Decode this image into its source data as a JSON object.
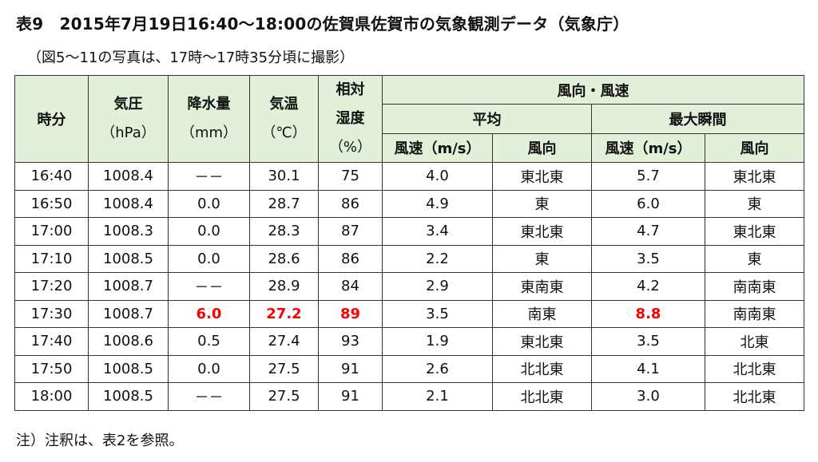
{
  "title": "表9　2015年7月19日16:40〜18:00の佐賀県佐賀市の気象観測データ（気象庁）",
  "subtitle": "（図5〜11の写真は、17時〜17時35分頃に撮影）",
  "headers": {
    "time": "時分",
    "pressure": "気圧",
    "pressure_unit": "（hPa）",
    "precip": "降水量",
    "precip_unit": "（mm）",
    "temp": "気温",
    "temp_unit": "（℃）",
    "humidity_1": "相対",
    "humidity_2": "湿度",
    "humidity_unit": "（%）",
    "wind": "風向・風速",
    "avg": "平均",
    "max": "最大瞬間",
    "speed": "風速（m/s）",
    "direction": "風向"
  },
  "rows": [
    {
      "time": "16:40",
      "pressure": "1008.4",
      "precip": "－－",
      "temp": "30.1",
      "humidity": "75",
      "avg_speed": "4.0",
      "avg_dir": "東北東",
      "max_speed": "5.7",
      "max_dir": "東北東"
    },
    {
      "time": "16:50",
      "pressure": "1008.4",
      "precip": "0.0",
      "temp": "28.7",
      "humidity": "86",
      "avg_speed": "4.9",
      "avg_dir": "東",
      "max_speed": "6.0",
      "max_dir": "東"
    },
    {
      "time": "17:00",
      "pressure": "1008.3",
      "precip": "0.0",
      "temp": "28.3",
      "humidity": "87",
      "avg_speed": "3.4",
      "avg_dir": "東北東",
      "max_speed": "4.7",
      "max_dir": "東北東"
    },
    {
      "time": "17:10",
      "pressure": "1008.5",
      "precip": "0.0",
      "temp": "28.6",
      "humidity": "86",
      "avg_speed": "2.2",
      "avg_dir": "東",
      "max_speed": "3.5",
      "max_dir": "東"
    },
    {
      "time": "17:20",
      "pressure": "1008.7",
      "precip": "－－",
      "temp": "28.9",
      "humidity": "84",
      "avg_speed": "2.9",
      "avg_dir": "東南東",
      "max_speed": "4.2",
      "max_dir": "南南東"
    },
    {
      "time": "17:30",
      "pressure": "1008.7",
      "precip": "6.0",
      "temp": "27.2",
      "humidity": "89",
      "avg_speed": "3.5",
      "avg_dir": "南東",
      "max_speed": "8.8",
      "max_dir": "南南東"
    },
    {
      "time": "17:40",
      "pressure": "1008.6",
      "precip": "0.5",
      "temp": "27.4",
      "humidity": "93",
      "avg_speed": "1.9",
      "avg_dir": "東北東",
      "max_speed": "3.5",
      "max_dir": "北東"
    },
    {
      "time": "17:50",
      "pressure": "1008.5",
      "precip": "0.0",
      "temp": "27.5",
      "humidity": "91",
      "avg_speed": "2.6",
      "avg_dir": "北北東",
      "max_speed": "4.1",
      "max_dir": "北北東"
    },
    {
      "time": "18:00",
      "pressure": "1008.5",
      "precip": "－－",
      "temp": "27.5",
      "humidity": "91",
      "avg_speed": "2.1",
      "avg_dir": "北北東",
      "max_speed": "3.0",
      "max_dir": "北北東"
    }
  ],
  "highlights": [
    {
      "row": 5,
      "field": "precip"
    },
    {
      "row": 5,
      "field": "temp"
    },
    {
      "row": 5,
      "field": "humidity"
    },
    {
      "row": 5,
      "field": "max_speed"
    }
  ],
  "colors": {
    "header_bg": "#e2efd9",
    "highlight": "#ff0000",
    "border": "#333333"
  },
  "footnote": "注）注釈は、表2を参照。"
}
